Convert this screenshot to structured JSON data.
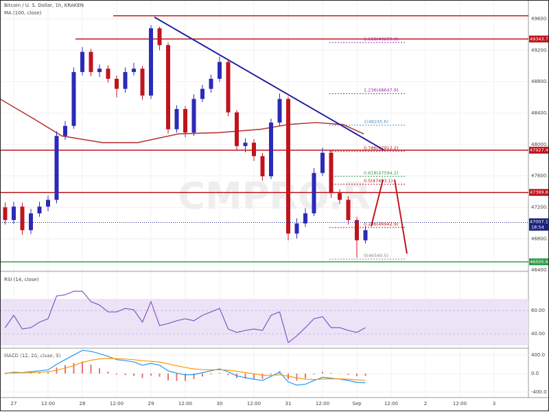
{
  "chart_data": {
    "type": "candlestick",
    "title": "Bitcoin / U. S. Dollar, 1h, KRAKEN",
    "watermark": "CMPRO.R",
    "x": [
      -3,
      0,
      3,
      6,
      9,
      12,
      15,
      18,
      21,
      24,
      27,
      30,
      33,
      36,
      39,
      42,
      45,
      48,
      51,
      54,
      57,
      60,
      63,
      66,
      69,
      72,
      75,
      78,
      81,
      84,
      87,
      90,
      93,
      96,
      99,
      102,
      105,
      108,
      111,
      114,
      117,
      120,
      123
    ],
    "xlim": [
      -4.8,
      180
    ],
    "xticks": [
      {
        "value": 0,
        "label": "27"
      },
      {
        "value": 12,
        "label": "12:00"
      },
      {
        "value": 24,
        "label": "28"
      },
      {
        "value": 36,
        "label": "12:00"
      },
      {
        "value": 48,
        "label": "29"
      },
      {
        "value": 60,
        "label": "12:00"
      },
      {
        "value": 72,
        "label": "30"
      },
      {
        "value": 84,
        "label": "12:00"
      },
      {
        "value": 96,
        "label": "31"
      },
      {
        "value": 108,
        "label": "12:00"
      },
      {
        "value": 120,
        "label": "Sep"
      },
      {
        "value": 132,
        "label": "12:00"
      },
      {
        "value": 144,
        "label": "2"
      },
      {
        "value": 156,
        "label": "12:00"
      },
      {
        "value": 168,
        "label": "3"
      }
    ],
    "ylim": [
      46392.1,
      49840.4
    ],
    "yticks": [
      {
        "value": 46400,
        "label": "46400.0"
      },
      {
        "value": 46800,
        "label": "46800.0"
      },
      {
        "value": 47200,
        "label": "47200.0"
      },
      {
        "value": 47600,
        "label": "47600.0"
      },
      {
        "value": 48000,
        "label": "48000.0"
      },
      {
        "value": 48400,
        "label": "48400.0"
      },
      {
        "value": 48800,
        "label": "48800.0"
      },
      {
        "value": 49200,
        "label": "49200.0"
      },
      {
        "value": 49600,
        "label": "49600.0"
      }
    ],
    "up_color": "#2b2bb8",
    "down_color": "#c0141c",
    "open": [
      47200,
      47038,
      47209,
      46909,
      47123,
      47209,
      47295,
      48109,
      48237,
      48923,
      49180,
      48923,
      48966,
      48837,
      48709,
      48923,
      48966,
      48623,
      49480,
      49266,
      48194,
      48452,
      48152,
      48580,
      48709,
      48837,
      49051,
      48409,
      47980,
      48023,
      47852,
      47595,
      48280,
      48580,
      46866,
      46995,
      47123,
      47637,
      47895,
      47380,
      47295,
      47038,
      46780
    ],
    "high": [
      47260,
      47270,
      47260,
      47180,
      47270,
      47350,
      48170,
      48300,
      48980,
      49240,
      49220,
      49020,
      49010,
      48880,
      48980,
      49040,
      49000,
      49520,
      49500,
      49300,
      48500,
      48490,
      48640,
      48760,
      48890,
      49120,
      49080,
      48440,
      48080,
      48070,
      47890,
      48330,
      48650,
      48610,
      47060,
      47190,
      47700,
      47960,
      47930,
      47430,
      47340,
      47080,
      46960
    ],
    "low": [
      46980,
      46990,
      46850,
      46860,
      47080,
      47150,
      47250,
      48060,
      48200,
      48880,
      48870,
      48860,
      48790,
      48600,
      48660,
      48880,
      48570,
      48580,
      49200,
      48140,
      48150,
      48090,
      48110,
      48540,
      48660,
      48800,
      48360,
      47920,
      47900,
      47790,
      47540,
      47560,
      48240,
      46780,
      46800,
      46950,
      47090,
      47600,
      47320,
      47240,
      46980,
      46560,
      46740
    ],
    "close": [
      47038,
      47209,
      46909,
      47123,
      47209,
      47295,
      48109,
      48237,
      48923,
      49180,
      48923,
      48966,
      48837,
      48709,
      48923,
      48966,
      48623,
      49480,
      49266,
      48194,
      48452,
      48152,
      48580,
      48709,
      48837,
      49051,
      48409,
      47980,
      48023,
      47852,
      47595,
      48280,
      48580,
      46866,
      46995,
      47123,
      47637,
      47895,
      47380,
      47295,
      47038,
      46780,
      46909
    ],
    "ma": {
      "name": "MA (100, close)",
      "color": "#b83a3a",
      "x": [
        -4.8,
        7.2,
        16.8,
        31.2,
        43.2,
        57.6,
        72,
        86.4,
        96,
        105.6,
        115.2,
        122.4
      ],
      "values": [
        48580,
        48323,
        48109,
        48023,
        48023,
        48135,
        48152,
        48194,
        48254,
        48280,
        48254,
        48135
      ]
    },
    "levels": [
      {
        "value": 49640,
        "start": 34.8,
        "color": "#c0141c"
      },
      {
        "value": 49343.7,
        "start": 21.6,
        "color": "#c0141c"
      },
      {
        "value": 47927.4,
        "start": -4.8,
        "color": "#c0141c"
      },
      {
        "value": 47389.8,
        "start": -4.8,
        "color": "#c0141c"
      },
      {
        "value": 46505.6,
        "start": -4.8,
        "color": "#2e9e4f"
      }
    ],
    "current_price": 47007.1,
    "time_left": "18:54",
    "price_color": "#1a237e",
    "fib_x": [
      110.4,
      122.4
    ],
    "fib": [
      {
        "value": 49299.3,
        "label": "1.618(49299.3)",
        "color": "#9c27b0"
      },
      {
        "value": 48647.9,
        "label": "1.236(48647.9)",
        "color": "#9c27b0"
      },
      {
        "value": 48245.6,
        "label": "1(48245.6)",
        "color": "#4a90c8"
      },
      {
        "value": 47912.2,
        "label": "0.786(47912.2)",
        "color": "#c0141c"
      },
      {
        "value": 47594.2,
        "label": "0.618(47594.2)",
        "color": "#2e9e4f"
      },
      {
        "value": 47493.1,
        "label": "0.5(47493.1)",
        "color": "#c0141c"
      },
      {
        "value": 46942.9,
        "label": "0.236(46942.9)",
        "color": "#c0141c"
      },
      {
        "value": 46540.5,
        "label": "0(46540.5)",
        "color": "#888888"
      }
    ],
    "trendline": {
      "x": [
        49.2,
        129.6
      ],
      "values": [
        49622,
        47927
      ],
      "color": "#2020a0"
    },
    "rsi": {
      "title": "RSI (14, close)",
      "color": "#7e57c2",
      "band": [
        30,
        70
      ],
      "ylim": [
        29.4,
        91.2
      ],
      "yticks": [
        {
          "value": 60,
          "label": "60.00"
        },
        {
          "value": 40,
          "label": "40.00"
        }
      ],
      "values": [
        45.3,
        55.9,
        44.1,
        45.3,
        50.0,
        52.9,
        72.4,
        73.5,
        76.5,
        76.5,
        67.6,
        64.7,
        58.8,
        58.8,
        61.8,
        60.6,
        50.0,
        67.6,
        47.1,
        48.8,
        51.2,
        52.9,
        51.2,
        55.9,
        58.8,
        61.8,
        44.1,
        41.2,
        42.9,
        44.1,
        42.9,
        55.9,
        58.8,
        32.4,
        38.2,
        45.3,
        52.9,
        54.7,
        45.3,
        45.3,
        42.9,
        41.2,
        45.3
      ]
    },
    "macd": {
      "title": "MACD (12, 26, close, 9)",
      "ylim": [
        -488,
        488
      ],
      "yticks": [
        {
          "value": 400,
          "label": "400.0"
        },
        {
          "value": 0,
          "label": "0.0"
        },
        {
          "value": -400,
          "label": "-400.0"
        }
      ],
      "macd": {
        "color": "#2196f3",
        "values": [
          0,
          30,
          20,
          40,
          60,
          80,
          200,
          300,
          400,
          500,
          480,
          430,
          370,
          300,
          280,
          250,
          180,
          220,
          180,
          60,
          10,
          -30,
          -20,
          20,
          60,
          100,
          40,
          -50,
          -90,
          -120,
          -150,
          -60,
          30,
          -180,
          -250,
          -230,
          -150,
          -80,
          -100,
          -120,
          -150,
          -190,
          -200
        ]
      },
      "signal": {
        "color": "#ff9800",
        "values": [
          10,
          15,
          16,
          21,
          29,
          39,
          71,
          117,
          173,
          239,
          287,
          316,
          327,
          321,
          313,
          300,
          276,
          265,
          248,
          210,
          170,
          130,
          100,
          84,
          79,
          83,
          75,
          50,
          22,
          -6,
          -35,
          -40,
          -26,
          -57,
          -96,
          -123,
          -128,
          -118,
          -114,
          -115,
          -122,
          -136,
          -149
        ]
      },
      "histogram": {
        "color": "#e57373",
        "values": [
          -10,
          15,
          4,
          19,
          31,
          41,
          129,
          183,
          227,
          261,
          193,
          114,
          43,
          -21,
          -33,
          -50,
          -96,
          -45,
          -68,
          -150,
          -160,
          -160,
          -120,
          -64,
          -19,
          17,
          -35,
          -100,
          -112,
          -114,
          -115,
          -20,
          56,
          -123,
          -154,
          -107,
          -22,
          38,
          14,
          -5,
          -28,
          -54,
          -51
        ]
      }
    }
  }
}
